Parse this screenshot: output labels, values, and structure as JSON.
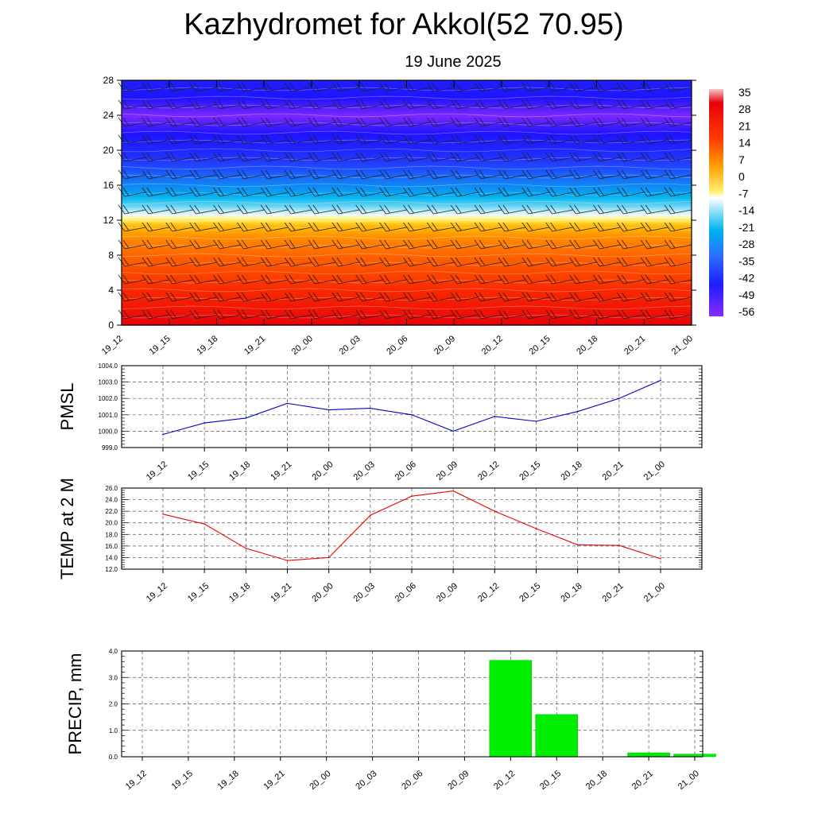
{
  "title": "Kazhydromet for Akkol(52 70.95)",
  "subtitle": "19 June 2025",
  "x_ticks": [
    "19_12",
    "19_15",
    "19_18",
    "19_21",
    "20_00",
    "20_03",
    "20_06",
    "20_09",
    "20_12",
    "20_15",
    "20_18",
    "20_21",
    "21_00"
  ],
  "chart_data": [
    {
      "type": "heatmap",
      "title": "",
      "yticks": [
        0,
        4,
        8,
        12,
        16,
        20,
        24,
        28
      ],
      "ylim": [
        0,
        28
      ],
      "colorbar_labels": [
        "35",
        "28",
        "21",
        "14",
        "7",
        "0",
        "-7",
        "-14",
        "-21",
        "-28",
        "-35",
        "-42",
        "-49",
        "-56"
      ],
      "value_profile": {
        "levels": [
          0,
          2,
          4,
          6,
          8,
          10,
          11.5,
          12.5,
          13.5,
          15,
          16.5,
          18,
          20,
          22,
          24,
          26,
          28
        ],
        "values": [
          28,
          24,
          21,
          18,
          15,
          11,
          5,
          -10,
          -22,
          -32,
          -40,
          -46,
          -52,
          -55,
          -60,
          -55,
          -53
        ]
      }
    },
    {
      "type": "line",
      "ylabel": "PMSL",
      "ylim": [
        999.0,
        1004.0
      ],
      "yticks": [
        "999.0",
        "1000.0",
        "1001.0",
        "1002.0",
        "1003.0",
        "1004.0"
      ],
      "color": "#0000cc",
      "values": [
        999.8,
        1000.5,
        1000.8,
        1001.7,
        1001.3,
        1001.4,
        1001.0,
        1000.0,
        1000.9,
        1000.6,
        1001.2,
        1002.0,
        1003.1
      ]
    },
    {
      "type": "line",
      "ylabel": "TEMP at 2 M",
      "ylim": [
        12.0,
        26.0
      ],
      "yticks": [
        "12.0",
        "14.0",
        "16.0",
        "18.0",
        "20.0",
        "22.0",
        "24.0",
        "26.0"
      ],
      "color": "#ee0000",
      "values": [
        21.5,
        19.8,
        15.6,
        13.5,
        14.0,
        21.3,
        24.6,
        25.5,
        22.0,
        19.0,
        16.2,
        16.1,
        13.8
      ]
    },
    {
      "type": "bar",
      "ylabel": "PRECIP, mm",
      "ylim": [
        0.0,
        4.0
      ],
      "yticks": [
        "0.0",
        "1.0",
        "2.0",
        "3.0",
        "4.0"
      ],
      "color": "#00ee00",
      "values": [
        0,
        0,
        0,
        0,
        0,
        0,
        0,
        0,
        3.65,
        1.6,
        0,
        0.15,
        0.1
      ]
    }
  ]
}
